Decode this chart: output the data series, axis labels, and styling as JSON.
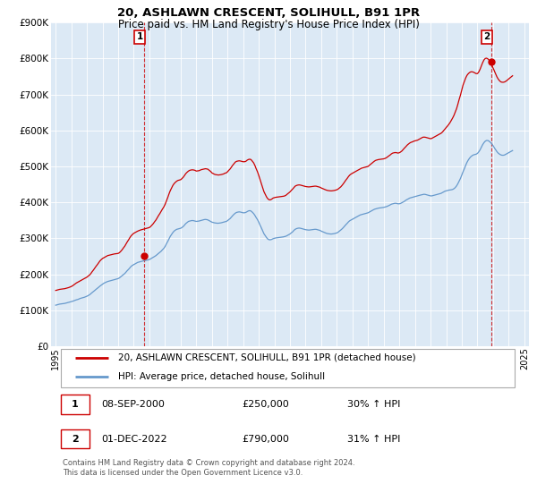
{
  "title": "20, ASHLAWN CRESCENT, SOLIHULL, B91 1PR",
  "subtitle": "Price paid vs. HM Land Registry's House Price Index (HPI)",
  "legend_line1": "20, ASHLAWN CRESCENT, SOLIHULL, B91 1PR (detached house)",
  "legend_line2": "HPI: Average price, detached house, Solihull",
  "annotation1_date": "08-SEP-2000",
  "annotation1_price": "£250,000",
  "annotation1_hpi": "30% ↑ HPI",
  "annotation2_date": "01-DEC-2022",
  "annotation2_price": "£790,000",
  "annotation2_hpi": "31% ↑ HPI",
  "footer": "Contains HM Land Registry data © Crown copyright and database right 2024.\nThis data is licensed under the Open Government Licence v3.0.",
  "red_color": "#cc0000",
  "blue_color": "#6699cc",
  "chart_bg": "#dce9f5",
  "annotation_box_color": "#cc0000",
  "ylim_min": 0,
  "ylim_max": 900000,
  "yticks": [
    0,
    100000,
    200000,
    300000,
    400000,
    500000,
    600000,
    700000,
    800000,
    900000
  ],
  "ytick_labels": [
    "£0",
    "£100K",
    "£200K",
    "£300K",
    "£400K",
    "£500K",
    "£600K",
    "£700K",
    "£800K",
    "£900K"
  ],
  "hpi_x": [
    1995.0,
    1995.08,
    1995.17,
    1995.25,
    1995.33,
    1995.42,
    1995.5,
    1995.58,
    1995.67,
    1995.75,
    1995.83,
    1995.92,
    1996.0,
    1996.08,
    1996.17,
    1996.25,
    1996.33,
    1996.42,
    1996.5,
    1996.58,
    1996.67,
    1996.75,
    1996.83,
    1996.92,
    1997.0,
    1997.08,
    1997.17,
    1997.25,
    1997.33,
    1997.42,
    1997.5,
    1997.58,
    1997.67,
    1997.75,
    1997.83,
    1997.92,
    1998.0,
    1998.08,
    1998.17,
    1998.25,
    1998.33,
    1998.42,
    1998.5,
    1998.58,
    1998.67,
    1998.75,
    1998.83,
    1998.92,
    1999.0,
    1999.08,
    1999.17,
    1999.25,
    1999.33,
    1999.42,
    1999.5,
    1999.58,
    1999.67,
    1999.75,
    1999.83,
    1999.92,
    2000.0,
    2000.08,
    2000.17,
    2000.25,
    2000.33,
    2000.42,
    2000.5,
    2000.58,
    2000.67,
    2000.75,
    2000.83,
    2000.92,
    2001.0,
    2001.08,
    2001.17,
    2001.25,
    2001.33,
    2001.42,
    2001.5,
    2001.58,
    2001.67,
    2001.75,
    2001.83,
    2001.92,
    2002.0,
    2002.08,
    2002.17,
    2002.25,
    2002.33,
    2002.42,
    2002.5,
    2002.58,
    2002.67,
    2002.75,
    2002.83,
    2002.92,
    2003.0,
    2003.08,
    2003.17,
    2003.25,
    2003.33,
    2003.42,
    2003.5,
    2003.58,
    2003.67,
    2003.75,
    2003.83,
    2003.92,
    2004.0,
    2004.08,
    2004.17,
    2004.25,
    2004.33,
    2004.42,
    2004.5,
    2004.58,
    2004.67,
    2004.75,
    2004.83,
    2004.92,
    2005.0,
    2005.08,
    2005.17,
    2005.25,
    2005.33,
    2005.42,
    2005.5,
    2005.58,
    2005.67,
    2005.75,
    2005.83,
    2005.92,
    2006.0,
    2006.08,
    2006.17,
    2006.25,
    2006.33,
    2006.42,
    2006.5,
    2006.58,
    2006.67,
    2006.75,
    2006.83,
    2006.92,
    2007.0,
    2007.08,
    2007.17,
    2007.25,
    2007.33,
    2007.42,
    2007.5,
    2007.58,
    2007.67,
    2007.75,
    2007.83,
    2007.92,
    2008.0,
    2008.08,
    2008.17,
    2008.25,
    2008.33,
    2008.42,
    2008.5,
    2008.58,
    2008.67,
    2008.75,
    2008.83,
    2008.92,
    2009.0,
    2009.08,
    2009.17,
    2009.25,
    2009.33,
    2009.42,
    2009.5,
    2009.58,
    2009.67,
    2009.75,
    2009.83,
    2009.92,
    2010.0,
    2010.08,
    2010.17,
    2010.25,
    2010.33,
    2010.42,
    2010.5,
    2010.58,
    2010.67,
    2010.75,
    2010.83,
    2010.92,
    2011.0,
    2011.08,
    2011.17,
    2011.25,
    2011.33,
    2011.42,
    2011.5,
    2011.58,
    2011.67,
    2011.75,
    2011.83,
    2011.92,
    2012.0,
    2012.08,
    2012.17,
    2012.25,
    2012.33,
    2012.42,
    2012.5,
    2012.58,
    2012.67,
    2012.75,
    2012.83,
    2012.92,
    2013.0,
    2013.08,
    2013.17,
    2013.25,
    2013.33,
    2013.42,
    2013.5,
    2013.58,
    2013.67,
    2013.75,
    2013.83,
    2013.92,
    2014.0,
    2014.08,
    2014.17,
    2014.25,
    2014.33,
    2014.42,
    2014.5,
    2014.58,
    2014.67,
    2014.75,
    2014.83,
    2014.92,
    2015.0,
    2015.08,
    2015.17,
    2015.25,
    2015.33,
    2015.42,
    2015.5,
    2015.58,
    2015.67,
    2015.75,
    2015.83,
    2015.92,
    2016.0,
    2016.08,
    2016.17,
    2016.25,
    2016.33,
    2016.42,
    2016.5,
    2016.58,
    2016.67,
    2016.75,
    2016.83,
    2016.92,
    2017.0,
    2017.08,
    2017.17,
    2017.25,
    2017.33,
    2017.42,
    2017.5,
    2017.58,
    2017.67,
    2017.75,
    2017.83,
    2017.92,
    2018.0,
    2018.08,
    2018.17,
    2018.25,
    2018.33,
    2018.42,
    2018.5,
    2018.58,
    2018.67,
    2018.75,
    2018.83,
    2018.92,
    2019.0,
    2019.08,
    2019.17,
    2019.25,
    2019.33,
    2019.42,
    2019.5,
    2019.58,
    2019.67,
    2019.75,
    2019.83,
    2019.92,
    2020.0,
    2020.08,
    2020.17,
    2020.25,
    2020.33,
    2020.42,
    2020.5,
    2020.58,
    2020.67,
    2020.75,
    2020.83,
    2020.92,
    2021.0,
    2021.08,
    2021.17,
    2021.25,
    2021.33,
    2021.42,
    2021.5,
    2021.58,
    2021.67,
    2021.75,
    2021.83,
    2021.92,
    2022.0,
    2022.08,
    2022.17,
    2022.25,
    2022.33,
    2022.42,
    2022.5,
    2022.58,
    2022.67,
    2022.75,
    2022.83,
    2022.92,
    2023.0,
    2023.08,
    2023.17,
    2023.25,
    2023.33,
    2023.42,
    2023.5,
    2023.58,
    2023.67,
    2023.75,
    2023.83,
    2023.92,
    2024.0,
    2024.08,
    2024.17,
    2024.25
  ],
  "hpi_y": [
    114000,
    115000,
    116000,
    117000,
    117500,
    118000,
    118500,
    119000,
    120000,
    121000,
    122000,
    123000,
    124000,
    125000,
    126500,
    128000,
    129000,
    130000,
    131500,
    133000,
    134000,
    135000,
    136000,
    137500,
    139000,
    141000,
    143000,
    146000,
    149000,
    152000,
    155000,
    158000,
    161000,
    164000,
    167000,
    170000,
    173000,
    175000,
    177000,
    178500,
    180000,
    181000,
    182000,
    183000,
    184000,
    185000,
    186000,
    187000,
    188000,
    190000,
    193000,
    196000,
    199000,
    202000,
    206000,
    210000,
    214000,
    218000,
    222000,
    225000,
    227000,
    229000,
    231000,
    233000,
    234000,
    235000,
    236000,
    237000,
    238000,
    238500,
    239000,
    240000,
    241000,
    243000,
    245000,
    247000,
    249500,
    252000,
    255000,
    258000,
    261000,
    264000,
    268000,
    272000,
    277000,
    284000,
    291000,
    298000,
    305000,
    311000,
    316000,
    320000,
    323000,
    325000,
    326000,
    327000,
    328000,
    330000,
    333000,
    337000,
    341000,
    344000,
    347000,
    348000,
    349000,
    349500,
    349000,
    348000,
    347000,
    347500,
    348000,
    349000,
    350000,
    351000,
    352000,
    352500,
    352000,
    351000,
    349000,
    347000,
    345000,
    344000,
    343000,
    342500,
    342000,
    342000,
    342500,
    343000,
    344000,
    345000,
    346000,
    347000,
    349000,
    352000,
    355000,
    359000,
    363000,
    367000,
    370000,
    372000,
    373000,
    373500,
    373000,
    372000,
    371000,
    371000,
    372000,
    374000,
    376000,
    377000,
    376000,
    373000,
    369000,
    364000,
    358000,
    352000,
    345000,
    337000,
    329000,
    321000,
    313000,
    307000,
    302000,
    298000,
    296000,
    296000,
    297000,
    299000,
    300000,
    301000,
    301500,
    302000,
    302500,
    303000,
    303500,
    304000,
    305000,
    306000,
    308000,
    310000,
    312000,
    315000,
    318000,
    322000,
    325000,
    327000,
    328000,
    328500,
    328000,
    327000,
    326000,
    325000,
    324000,
    323500,
    323000,
    323000,
    323500,
    324000,
    324500,
    325000,
    325000,
    324000,
    323000,
    322000,
    320000,
    318500,
    317000,
    315500,
    314000,
    313000,
    312500,
    312000,
    312000,
    312500,
    313000,
    314000,
    315000,
    317000,
    320000,
    323000,
    326000,
    330000,
    334000,
    338000,
    342000,
    346000,
    349000,
    351000,
    353000,
    355000,
    357000,
    359000,
    361000,
    363000,
    365000,
    366000,
    367000,
    368000,
    369000,
    370000,
    371000,
    373000,
    375000,
    377000,
    379000,
    381000,
    382000,
    383000,
    384000,
    384500,
    385000,
    385500,
    386000,
    387000,
    388000,
    389500,
    391000,
    393000,
    395000,
    396000,
    397000,
    397500,
    397000,
    396000,
    396000,
    397000,
    399000,
    401000,
    403000,
    406000,
    408000,
    410000,
    412000,
    413000,
    414000,
    415000,
    416000,
    417000,
    418000,
    419000,
    420000,
    421000,
    422000,
    422500,
    422000,
    421000,
    420000,
    419000,
    418000,
    418000,
    419000,
    420000,
    421000,
    422000,
    423000,
    424000,
    425000,
    427000,
    429000,
    431000,
    432000,
    433000,
    434000,
    434500,
    435000,
    436000,
    438000,
    441000,
    446000,
    452000,
    459000,
    467000,
    476000,
    485000,
    494000,
    503000,
    511000,
    518000,
    523000,
    527000,
    530000,
    532000,
    533000,
    534000,
    536000,
    540000,
    546000,
    553000,
    560000,
    566000,
    570000,
    572000,
    572000,
    570000,
    567000,
    563000,
    558000,
    552000,
    546000,
    541000,
    537000,
    534000,
    532000,
    531000,
    531000,
    532000,
    534000,
    536000,
    538000,
    540000,
    542000,
    544000
  ],
  "red_y": [
    155000,
    156000,
    157000,
    158000,
    158500,
    159000,
    159500,
    160000,
    161000,
    162000,
    163000,
    164500,
    166000,
    168000,
    171000,
    174000,
    176000,
    178000,
    180000,
    182000,
    184000,
    186000,
    188000,
    190000,
    192000,
    195000,
    198000,
    202000,
    207000,
    212000,
    217000,
    222000,
    227000,
    232000,
    237000,
    241000,
    244000,
    246000,
    248000,
    250000,
    252000,
    253000,
    254000,
    255000,
    256000,
    256500,
    257000,
    257500,
    258000,
    260000,
    264000,
    268000,
    273000,
    278000,
    284000,
    290000,
    296000,
    302000,
    307000,
    311000,
    314000,
    316000,
    318000,
    320000,
    321500,
    323000,
    324000,
    325000,
    326000,
    327000,
    328000,
    329000,
    330000,
    333000,
    337000,
    341000,
    346000,
    351000,
    357000,
    363000,
    369000,
    375000,
    381000,
    387000,
    394000,
    403000,
    413000,
    423000,
    432000,
    440000,
    447000,
    452000,
    456000,
    459000,
    461000,
    462000,
    463000,
    466000,
    470000,
    475000,
    480000,
    484000,
    487000,
    489000,
    490000,
    490500,
    490000,
    489000,
    487000,
    487500,
    488000,
    489500,
    491000,
    492000,
    493000,
    493500,
    493000,
    492000,
    489000,
    486000,
    482000,
    480000,
    478000,
    477000,
    476500,
    476000,
    476500,
    477000,
    478000,
    479000,
    481000,
    482000,
    485000,
    489000,
    493000,
    498000,
    503000,
    508000,
    512000,
    514000,
    515000,
    515500,
    515000,
    514000,
    513000,
    513000,
    514000,
    517000,
    519000,
    520000,
    519000,
    515000,
    510000,
    503000,
    494000,
    485000,
    475000,
    464000,
    452000,
    441000,
    430000,
    422000,
    415000,
    410000,
    407000,
    407000,
    409000,
    412000,
    413000,
    414000,
    414500,
    415000,
    415500,
    416000,
    416500,
    417000,
    418000,
    420000,
    423000,
    426000,
    429000,
    433000,
    437000,
    441000,
    445000,
    447000,
    448000,
    448500,
    448000,
    447000,
    446000,
    445000,
    444000,
    443500,
    443000,
    443000,
    443500,
    444000,
    444500,
    445000,
    445000,
    444000,
    443000,
    442000,
    440000,
    438500,
    437000,
    435500,
    434000,
    433000,
    432500,
    432000,
    432000,
    432500,
    433000,
    434000,
    435000,
    437000,
    440000,
    443000,
    447000,
    452000,
    457000,
    462000,
    467000,
    472000,
    476000,
    479000,
    481000,
    483000,
    485000,
    487000,
    489000,
    491000,
    493000,
    495000,
    496000,
    497000,
    498000,
    499000,
    500000,
    503000,
    506000,
    509000,
    512000,
    515000,
    517000,
    518000,
    519000,
    519500,
    520000,
    520500,
    521000,
    522000,
    524000,
    526500,
    529000,
    532000,
    535000,
    537000,
    538000,
    538500,
    538000,
    537000,
    538000,
    540000,
    543000,
    547000,
    551000,
    555000,
    559000,
    562000,
    565000,
    567000,
    568000,
    570000,
    571000,
    572000,
    573000,
    575000,
    577000,
    579000,
    581000,
    581500,
    581000,
    580000,
    579000,
    578000,
    577000,
    578000,
    580000,
    582000,
    584000,
    586000,
    588000,
    590000,
    592000,
    595000,
    599000,
    604000,
    608000,
    612000,
    617000,
    622000,
    628000,
    635000,
    642000,
    651000,
    661000,
    673000,
    686000,
    699000,
    713000,
    726000,
    737000,
    746000,
    753000,
    758000,
    761000,
    763000,
    763000,
    762000,
    760000,
    758000,
    758000,
    762000,
    770000,
    779000,
    788000,
    796000,
    800000,
    801000,
    799000,
    795000,
    789000,
    782000,
    774000,
    766000,
    757000,
    749000,
    743000,
    738000,
    735000,
    734000,
    734000,
    735000,
    737000,
    740000,
    743000,
    746000,
    749000,
    752000
  ],
  "sale1_x": 2000.67,
  "sale1_y": 250000,
  "sale2_x": 2022.92,
  "sale2_y": 790000,
  "xlim_min": 1994.7,
  "xlim_max": 2025.3,
  "xticks": [
    1995,
    1996,
    1997,
    1998,
    1999,
    2000,
    2001,
    2002,
    2003,
    2004,
    2005,
    2006,
    2007,
    2008,
    2009,
    2010,
    2011,
    2012,
    2013,
    2014,
    2015,
    2016,
    2017,
    2018,
    2019,
    2020,
    2021,
    2022,
    2023,
    2024,
    2025
  ]
}
